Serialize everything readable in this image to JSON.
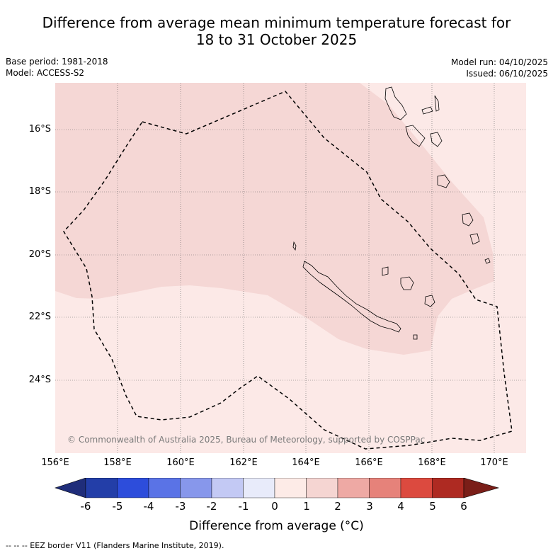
{
  "title_line1": "Difference from average mean minimum temperature forecast for",
  "title_line2": "18 to 31 October 2025",
  "meta": {
    "base_period": "Base period: 1981-2018",
    "model": "Model: ACCESS-S2",
    "model_run": "Model run: 04/10/2025",
    "issued": "Issued: 06/10/2025"
  },
  "map": {
    "lat_labels": [
      "16°S",
      "18°S",
      "20°S",
      "22°S",
      "24°S"
    ],
    "lon_labels": [
      "156°E",
      "158°E",
      "160°E",
      "162°E",
      "164°E",
      "166°E",
      "168°E",
      "170°E"
    ],
    "copyright": "© Commonwealth of Australia 2025, Bureau of Meteorology, supported by COSPPac",
    "colors": {
      "zero_to_one": "#fce9e7",
      "one_to_two": "#f5d7d5",
      "border_dash": "#000000"
    }
  },
  "colorbar": {
    "labels": [
      "-6",
      "-5",
      "-4",
      "-3",
      "-2",
      "-1",
      "0",
      "1",
      "2",
      "3",
      "4",
      "5",
      "6"
    ],
    "colors": [
      "#1f2d7a",
      "#233ea8",
      "#2d4ddb",
      "#5a73e6",
      "#8797eb",
      "#c3c9f4",
      "#e8ebfa",
      "#fdebe7",
      "#f5d5d2",
      "#eea9a4",
      "#e6827a",
      "#dc4a3f",
      "#ae2a22",
      "#7a1e18"
    ],
    "title": "Difference from average (°C)"
  },
  "footnote": "--  --  -- EEZ border V11 (Flanders Marine Institute, 2019)."
}
